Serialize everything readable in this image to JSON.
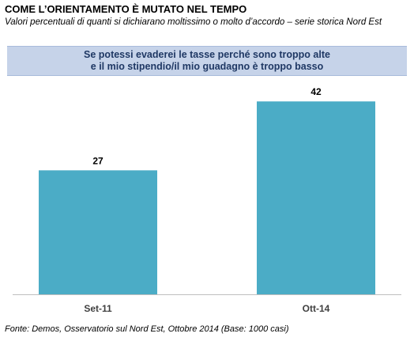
{
  "header": {
    "title": "COME L’ORIENTAMENTO  È MUTATO NEL TEMPO",
    "subtitle": "Valori percentuali di quanti si dichiarano moltissimo o molto d’accordo – serie storica Nord Est"
  },
  "banner": {
    "line1": "Se potessi evaderei  le tasse perché sono troppo alte",
    "line2": "e il mio stipendio/il mio guadagno è troppo basso"
  },
  "chart_data": {
    "type": "bar",
    "categories": [
      "Set-11",
      "Ott-14"
    ],
    "values": [
      27,
      42
    ],
    "title": "",
    "xlabel": "",
    "ylabel": "",
    "ylim": [
      0,
      46
    ],
    "grid": false,
    "bar_color": "#4bacc6",
    "axis_color": "#bfbfbf"
  },
  "footer": {
    "source": "Fonte: Demos, Osservatorio sul Nord Est, Ottobre 2014 (Base: 1000 casi)"
  }
}
